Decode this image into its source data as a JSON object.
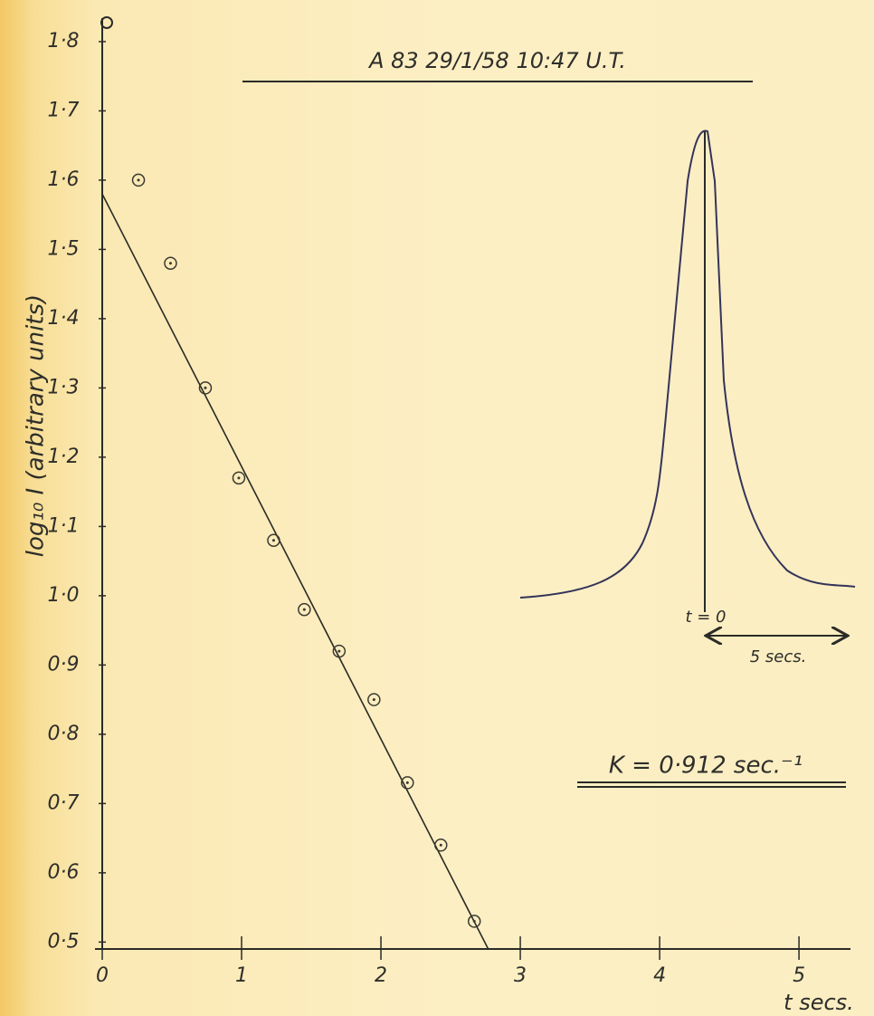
{
  "chart_data": {
    "type": "scatter",
    "title": "A 83   29/1/58   10:47 U.T.",
    "annotations": [
      "t = 0",
      "5 secs.",
      "K = 0·912 sec.⁻¹"
    ],
    "x_label": "t   secs.",
    "y_label": "log₁₀ I  (arbitrary units)",
    "xlim": [
      0,
      5.35
    ],
    "ylim": [
      0.49,
      1.83
    ],
    "xticks": [
      0,
      1,
      2,
      3,
      4,
      5
    ],
    "yticks": [
      {
        "value": 0.5,
        "label": "0·5"
      },
      {
        "value": 0.6,
        "label": "0·6"
      },
      {
        "value": 0.7,
        "label": "0·7"
      },
      {
        "value": 0.8,
        "label": "0·8"
      },
      {
        "value": 0.9,
        "label": "0·9"
      },
      {
        "value": 1.0,
        "label": "1·0"
      },
      {
        "value": 1.1,
        "label": "1·1"
      },
      {
        "value": 1.2,
        "label": "1·2"
      },
      {
        "value": 1.3,
        "label": "1·3"
      },
      {
        "value": 1.4,
        "label": "1·4"
      },
      {
        "value": 1.5,
        "label": "1·5"
      },
      {
        "value": 1.6,
        "label": "1·6"
      },
      {
        "value": 1.7,
        "label": "1·7"
      },
      {
        "value": 1.8,
        "label": "1·8"
      }
    ],
    "grid": false,
    "points": {
      "color": "#3a3a30",
      "x": [
        0.26,
        0.49,
        0.74,
        0.98,
        1.23,
        1.45,
        1.7,
        1.95,
        2.19,
        2.43,
        2.67
      ],
      "y": [
        1.6,
        1.48,
        1.3,
        1.17,
        1.08,
        0.98,
        0.92,
        0.85,
        0.73,
        0.64,
        0.53
      ]
    },
    "fit": {
      "color": "#2a2a25",
      "x": [
        0,
        2.77
      ],
      "y": [
        1.58,
        0.49
      ]
    }
  }
}
